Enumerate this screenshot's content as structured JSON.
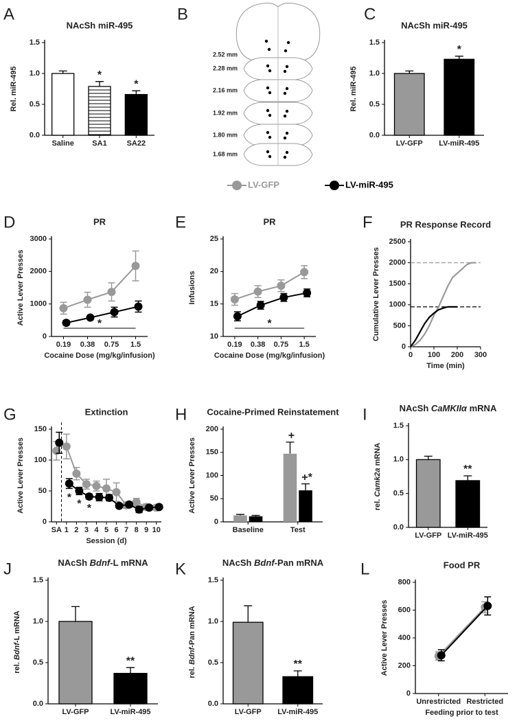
{
  "chart_data": [
    {
      "panel": "A",
      "type": "bar",
      "title": "NAcSh miR-495",
      "ylabel": "Rel. miR-495",
      "categories": [
        "Saline",
        "SA1",
        "SA22"
      ],
      "values": [
        1.0,
        0.79,
        0.66
      ],
      "errors": [
        0.04,
        0.08,
        0.06
      ],
      "colors": [
        "#ffffff",
        "#ffffff",
        "#000000"
      ],
      "striped": [
        false,
        true,
        false
      ],
      "bar_marks": [
        null,
        "*",
        "*"
      ],
      "ylim": [
        0,
        1.5
      ],
      "yticks": [
        {
          "value": 0,
          "label": "0.0"
        },
        0.5,
        {
          "value": 1,
          "label": "1.0"
        },
        1.5
      ]
    },
    {
      "panel": "C",
      "type": "bar",
      "title": "NAcSh miR-495",
      "ylabel": "Rel. miR-495",
      "categories": [
        "LV-GFP",
        "LV-miR-495"
      ],
      "values": [
        1.0,
        1.23
      ],
      "errors": [
        0.04,
        0.05
      ],
      "colors": [
        "#999999",
        "#000000"
      ],
      "bar_marks": [
        null,
        "*"
      ],
      "ylim": [
        0,
        1.5
      ],
      "yticks": [
        {
          "value": 0,
          "label": "0.0"
        },
        0.5,
        {
          "value": 1,
          "label": "1.0"
        },
        1.5
      ]
    },
    {
      "panel": "D",
      "type": "line",
      "title": "PR",
      "ylabel": "Active Lever Presses",
      "xlabel": "Cocaine Dose (mg/kg/infusion)",
      "categories": [
        "0.19",
        "0.38",
        "0.75",
        "1.5"
      ],
      "series": [
        {
          "color": "#999999",
          "values": [
            870,
            1130,
            1370,
            2170
          ],
          "errors": [
            180,
            230,
            280,
            460
          ]
        },
        {
          "color": "#000000",
          "values": [
            420,
            580,
            750,
            920
          ],
          "errors": [
            70,
            60,
            150,
            170
          ]
        }
      ],
      "ylim": [
        0,
        3000
      ],
      "yticks": [
        0,
        1000,
        2000,
        3000
      ],
      "significance": "*"
    },
    {
      "panel": "E",
      "type": "line",
      "title": "PR",
      "ylabel": "Infusions",
      "xlabel": "Cocaine Dose (mg/kg/infusion)",
      "categories": [
        "0.19",
        "0.38",
        "0.75",
        "1.5"
      ],
      "series": [
        {
          "color": "#999999",
          "values": [
            15.7,
            16.9,
            17.8,
            19.9
          ],
          "errors": [
            0.9,
            0.9,
            0.9,
            1.0
          ]
        },
        {
          "color": "#000000",
          "values": [
            13.1,
            14.8,
            16.0,
            16.7
          ],
          "errors": [
            0.7,
            0.6,
            0.6,
            0.6
          ]
        }
      ],
      "ylim": [
        10,
        25
      ],
      "yticks": [
        10,
        15,
        20,
        25
      ],
      "significance": "*"
    },
    {
      "panel": "F",
      "type": "xy-line",
      "title": "PR Response Record",
      "ylabel": "Cumulative Lever Presses",
      "xlabel": "Time (min)",
      "xlim": [
        0,
        300
      ],
      "xticks": [
        0,
        100,
        200,
        300
      ],
      "ylim": [
        0,
        2500
      ],
      "yticks": [
        0,
        500,
        1000,
        1500,
        2000,
        2500
      ],
      "series": [
        {
          "color": "#999999",
          "x": [
            0,
            20,
            40,
            60,
            80,
            100,
            120,
            140,
            160,
            180,
            200,
            220,
            240,
            260,
            280
          ],
          "values": [
            0,
            50,
            150,
            300,
            500,
            750,
            950,
            1200,
            1450,
            1650,
            1750,
            1850,
            1950,
            2000,
            2000
          ]
        },
        {
          "color": "#000000",
          "x": [
            0,
            20,
            40,
            60,
            80,
            100,
            120,
            140,
            160,
            180,
            200
          ],
          "values": [
            0,
            150,
            350,
            550,
            700,
            800,
            880,
            920,
            950,
            950,
            950
          ]
        }
      ],
      "hlines": [
        {
          "value": 2000,
          "color": "#999999"
        },
        {
          "value": 950,
          "color": "#000000"
        }
      ]
    },
    {
      "panel": "G",
      "type": "line",
      "title": "Extinction",
      "ylabel": "Active Lever Presses",
      "xlabel": "Session (d)",
      "categories": [
        "SA",
        "1",
        "2",
        "3",
        "4",
        "5",
        "6",
        "7",
        "8",
        "9",
        "10"
      ],
      "first_separate": true,
      "series": [
        {
          "color": "#999999",
          "values": [
            115,
            122,
            78,
            61,
            58,
            54,
            48,
            27,
            32,
            24,
            23
          ],
          "errors": [
            15,
            20,
            10,
            8,
            8,
            15,
            15,
            5,
            6,
            5,
            4
          ]
        },
        {
          "color": "#000000",
          "values": [
            128,
            62,
            50,
            41,
            40,
            39,
            26,
            28,
            20,
            23,
            24
          ],
          "errors": [
            17,
            8,
            6,
            4,
            6,
            5,
            3,
            4,
            5,
            4,
            3
          ],
          "point_marks": [
            null,
            "*",
            "*",
            "*",
            null,
            null,
            null,
            null,
            null,
            null,
            null
          ]
        }
      ],
      "ylim": [
        0,
        150
      ],
      "yticks": [
        0,
        50,
        100,
        150
      ]
    },
    {
      "panel": "H",
      "type": "grouped-bar",
      "title": "Cocaine-Primed Reinstatement",
      "ylabel": "Active Lever Presses",
      "categories": [
        "Baseline",
        "Test"
      ],
      "series": [
        {
          "color": "#999999",
          "values": [
            14,
            147
          ],
          "errors": [
            2,
            25
          ],
          "bar_marks": [
            null,
            "+"
          ]
        },
        {
          "color": "#000000",
          "values": [
            12,
            68
          ],
          "errors": [
            2,
            14
          ],
          "bar_marks": [
            null,
            "+*"
          ]
        }
      ],
      "ylim": [
        0,
        200
      ],
      "yticks": [
        0,
        50,
        100,
        150,
        200
      ]
    },
    {
      "panel": "I",
      "type": "bar",
      "title": [
        {
          "text": "NAcSh "
        },
        {
          "text": "CaMKIIα",
          "italic": true
        },
        {
          "text": " mRNA"
        }
      ],
      "ylabel": [
        {
          "text": "rel. "
        },
        {
          "text": "Camk2a",
          "italic": true
        },
        {
          "text": " mRNA"
        }
      ],
      "categories": [
        "LV-GFP",
        "LV-miR-495"
      ],
      "values": [
        1.0,
        0.69
      ],
      "errors": [
        0.05,
        0.07
      ],
      "colors": [
        "#999999",
        "#000000"
      ],
      "bar_marks": [
        null,
        "**"
      ],
      "ylim": [
        0,
        1.5
      ],
      "yticks": [
        {
          "value": 0,
          "label": "0.0"
        },
        0.5,
        {
          "value": 1,
          "label": "1.0"
        },
        1.5
      ]
    },
    {
      "panel": "J",
      "type": "bar",
      "title": [
        {
          "text": "NAcSh "
        },
        {
          "text": "Bdnf",
          "italic": true
        },
        {
          "text": "-L mRNA"
        }
      ],
      "ylabel": [
        {
          "text": "rel. "
        },
        {
          "text": "Bdnf",
          "italic": true
        },
        {
          "text": "-L mRNA"
        }
      ],
      "categories": [
        "LV-GFP",
        "LV-miR-495"
      ],
      "values": [
        1.0,
        0.37
      ],
      "errors": [
        0.18,
        0.07
      ],
      "colors": [
        "#999999",
        "#000000"
      ],
      "bar_marks": [
        null,
        "**"
      ],
      "ylim": [
        0,
        1.5
      ],
      "yticks": [
        {
          "value": 0,
          "label": "0.0"
        },
        0.5,
        {
          "value": 1,
          "label": "1.0"
        },
        1.5
      ]
    },
    {
      "panel": "K",
      "type": "bar",
      "title": [
        {
          "text": "NAcSh "
        },
        {
          "text": "Bdnf",
          "italic": true
        },
        {
          "text": "-Pan mRNA"
        }
      ],
      "ylabel": [
        {
          "text": "rel. "
        },
        {
          "text": "Bdnf",
          "italic": true
        },
        {
          "text": "-Pan mRNA"
        }
      ],
      "categories": [
        "LV-GFP",
        "LV-miR-495"
      ],
      "values": [
        0.99,
        0.33
      ],
      "errors": [
        0.2,
        0.07
      ],
      "colors": [
        "#999999",
        "#000000"
      ],
      "bar_marks": [
        null,
        "**"
      ],
      "ylim": [
        0,
        1.5
      ],
      "yticks": [
        {
          "value": 0,
          "label": "0.0"
        },
        0.5,
        {
          "value": 1,
          "label": "1.0"
        },
        1.5
      ]
    },
    {
      "panel": "L",
      "type": "line",
      "title": "Food PR",
      "ylabel": "Active Lever Presses",
      "xlabel": "Feeding prior to test",
      "categories": [
        "Unrestricted",
        "Restricted"
      ],
      "series": [
        {
          "color": "#999999",
          "values": [
            270,
            620
          ],
          "errors": [
            30,
            40
          ]
        },
        {
          "color": "#000000",
          "values": [
            275,
            630
          ],
          "errors": [
            40,
            65
          ]
        }
      ],
      "ylim": [
        0,
        800
      ],
      "yticks": [
        0,
        200,
        400,
        600,
        800
      ]
    }
  ],
  "legend": [
    {
      "name": "LV-GFP",
      "color": "#999999"
    },
    {
      "name": "LV-miR-495",
      "color": "#000000"
    }
  ],
  "atlas": {
    "panel": "B",
    "sections": [
      "2.52 mm",
      "2.28 mm",
      "2.16 mm",
      "1.92 mm",
      "1.80 mm",
      "1.68 mm"
    ]
  }
}
